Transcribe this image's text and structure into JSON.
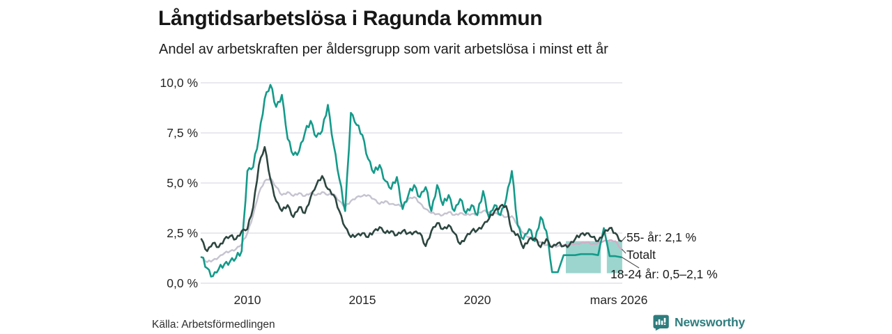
{
  "meta": {
    "title": "Långtidsarbetslösa i Ragunda kommun",
    "subtitle": "Andel av arbetskraften per åldersgrupp som varit arbetslösa i minst ett år",
    "source": "Källa: Arbetsförmedlingen"
  },
  "brand": {
    "name": "Newsworthy",
    "color": "#2e7d7e"
  },
  "colors": {
    "grid": "#dcdbe3",
    "tick_text": "#262626",
    "leader_line": "#4d4d4d",
    "background": "#ffffff"
  },
  "chart_data": {
    "type": "line",
    "title": "Långtidsarbetslösa i Ragunda kommun",
    "subtitle": "Andel av arbetskraften per åldersgrupp som varit arbetslösa i minst ett år",
    "unit": "%",
    "grid": true,
    "legend_position": "end-labels-right",
    "x_axis": {
      "range": [
        2008.0,
        2026.3
      ],
      "ticks": [
        {
          "t": 2010,
          "label": "2010"
        },
        {
          "t": 2015,
          "label": "2015"
        },
        {
          "t": 2020,
          "label": "2020"
        },
        {
          "t": 2026.15,
          "label": "mars 2026"
        }
      ]
    },
    "y_axis": {
      "range": [
        0,
        10
      ],
      "ticks": [
        {
          "v": 0,
          "label": "0,0 %"
        },
        {
          "v": 2.5,
          "label": "2,5 %"
        },
        {
          "v": 5,
          "label": "5,0 %"
        },
        {
          "v": 7.5,
          "label": "7,5 %"
        },
        {
          "v": 10,
          "label": "10,0 %"
        }
      ]
    },
    "x_start": 2008.0,
    "x_step": 0.25,
    "x": [
      2008,
      2008.25,
      2008.5,
      2008.75,
      2009,
      2009.25,
      2009.5,
      2009.75,
      2010,
      2010.25,
      2010.5,
      2010.75,
      2011,
      2011.25,
      2011.5,
      2011.75,
      2012,
      2012.25,
      2012.5,
      2012.75,
      2013,
      2013.25,
      2013.5,
      2013.75,
      2014,
      2014.25,
      2014.5,
      2014.75,
      2015,
      2015.25,
      2015.5,
      2015.75,
      2016,
      2016.25,
      2016.5,
      2016.75,
      2017,
      2017.25,
      2017.5,
      2017.75,
      2018,
      2018.25,
      2018.5,
      2018.75,
      2019,
      2019.25,
      2019.5,
      2019.75,
      2020,
      2020.25,
      2020.5,
      2020.75,
      2021,
      2021.25,
      2021.5,
      2021.75,
      2022,
      2022.25,
      2022.5,
      2022.75,
      2023,
      2023.25,
      2023.5,
      2023.75,
      2024,
      2024.25,
      2024.5,
      2024.75,
      2025,
      2025.25,
      2025.5,
      2025.75,
      2026,
      2026.25
    ],
    "series": [
      {
        "name": "55- år",
        "color": "#2c463f",
        "end_label": "55- år: 2,1 %",
        "end_value": "2,1 %",
        "values": [
          2.2,
          1.6,
          2.0,
          1.8,
          2.2,
          2.35,
          2.2,
          2.6,
          2.7,
          3.8,
          5.9,
          6.8,
          5.2,
          4.1,
          3.6,
          3.9,
          3.3,
          3.8,
          3.5,
          4.3,
          4.9,
          5.35,
          4.7,
          4.4,
          3.6,
          2.8,
          2.3,
          2.4,
          2.5,
          2.3,
          2.6,
          2.8,
          2.5,
          2.6,
          2.4,
          2.6,
          2.5,
          2.55,
          2.5,
          1.85,
          2.6,
          3.0,
          2.7,
          2.9,
          2.5,
          1.95,
          2.3,
          2.6,
          2.65,
          2.9,
          3.2,
          3.6,
          3.85,
          3.85,
          2.6,
          2.45,
          1.75,
          2.2,
          2.25,
          1.8,
          2.2,
          1.8,
          2.0,
          1.85,
          1.9,
          2.2,
          2.45,
          2.5,
          2.3,
          2.1,
          2.5,
          2.75,
          2.5,
          2.1
        ]
      },
      {
        "name": "Totalt",
        "color": "#c6c3d0",
        "projected_color": "#d2aec6",
        "end_label": "Totalt",
        "values": [
          1.3,
          1.05,
          1.15,
          1.3,
          1.5,
          1.6,
          1.7,
          1.95,
          2.5,
          3.4,
          4.5,
          5.1,
          5.25,
          4.8,
          4.4,
          4.55,
          4.35,
          4.5,
          4.35,
          4.5,
          4.4,
          4.55,
          4.4,
          4.45,
          4.1,
          3.8,
          4.1,
          4.3,
          4.35,
          4.4,
          4.2,
          3.95,
          4.1,
          3.95,
          3.9,
          3.85,
          4.2,
          4.3,
          4.0,
          3.7,
          3.5,
          3.45,
          3.4,
          3.55,
          3.4,
          3.5,
          3.4,
          3.45,
          3.45,
          3.6,
          3.55,
          3.5,
          3.4,
          3.3,
          3.35,
          2.9,
          2.5,
          2.3,
          2.15,
          2.05,
          1.9,
          1.85,
          1.85,
          1.9,
          1.95,
          1.95,
          2.0,
          2.05,
          1.95,
          2.0,
          2.1,
          2.15,
          2.1,
          1.7
        ]
      },
      {
        "name": "18-24 år",
        "color": "#149a8a",
        "end_label": "18-24 år: 0,5–2,1 %",
        "end_value": "0,5–2,1 %",
        "values": [
          1.3,
          0.75,
          0.35,
          0.7,
          0.95,
          1.1,
          1.25,
          1.6,
          5.6,
          5.8,
          7.3,
          9.2,
          9.9,
          8.8,
          9.4,
          7.2,
          6.4,
          6.6,
          7.5,
          8.1,
          7.3,
          7.6,
          8.9,
          6.9,
          5.2,
          3.6,
          8.5,
          7.9,
          7.4,
          6.2,
          5.5,
          5.9,
          5.1,
          4.7,
          5.3,
          3.7,
          4.4,
          4.9,
          4.3,
          4.8,
          3.6,
          4.9,
          3.9,
          4.4,
          3.6,
          4.2,
          3.5,
          3.9,
          3.4,
          4.6,
          3.3,
          3.9,
          3.4,
          4.2,
          5.6,
          2.9,
          2.2,
          2.7,
          2.1,
          3.3,
          2.6,
          0.55,
          0.55,
          1.4,
          1.4,
          1.4,
          1.45,
          1.45,
          1.45,
          1.4,
          2.75,
          1.35,
          1.35,
          1.3
        ]
      }
    ],
    "uncertainty_band": {
      "series": "18-24 år",
      "label": "18-24 år: 0,5–2,1 %",
      "y_range": [
        0.5,
        2.1
      ],
      "x_segments": [
        [
          2023.85,
          2025.37
        ],
        [
          2025.63,
          2026.3
        ]
      ],
      "color": "#149a8a",
      "opacity": 0.42
    },
    "projection_start": 2023.75
  }
}
